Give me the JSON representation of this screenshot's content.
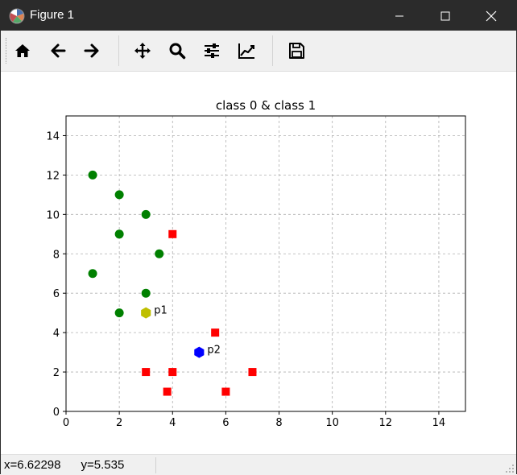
{
  "window": {
    "title": "Figure 1"
  },
  "toolbar": {
    "buttons": [
      {
        "name": "home",
        "icon": "home-icon"
      },
      {
        "name": "back",
        "icon": "arrow-left-icon"
      },
      {
        "name": "forward",
        "icon": "arrow-right-icon"
      },
      {
        "name": "pan",
        "icon": "move-icon"
      },
      {
        "name": "zoom",
        "icon": "magnifier-icon"
      },
      {
        "name": "configure-subplots",
        "icon": "sliders-icon"
      },
      {
        "name": "edit-axis",
        "icon": "line-chart-icon"
      },
      {
        "name": "save",
        "icon": "floppy-disk-icon"
      }
    ]
  },
  "status": {
    "coords": "x=6.62298      y=5.535"
  },
  "chart_data": {
    "type": "scatter",
    "title": "class 0 & class 1",
    "xlabel": "",
    "ylabel": "",
    "xlim": [
      0,
      15
    ],
    "ylim": [
      0,
      15
    ],
    "xticks": [
      0,
      2,
      4,
      6,
      8,
      10,
      12,
      14
    ],
    "yticks": [
      0,
      2,
      4,
      6,
      8,
      10,
      12,
      14
    ],
    "grid": true,
    "series": [
      {
        "marker": "circle",
        "color": "#008000",
        "points": [
          [
            1,
            12
          ],
          [
            2,
            11
          ],
          [
            3,
            10
          ],
          [
            2,
            9
          ],
          [
            3.5,
            8
          ],
          [
            1,
            7
          ],
          [
            3,
            6
          ],
          [
            2,
            5
          ]
        ]
      },
      {
        "marker": "square",
        "color": "#ff0000",
        "points": [
          [
            4,
            9
          ],
          [
            5.6,
            4
          ],
          [
            3,
            2
          ],
          [
            4,
            2
          ],
          [
            7,
            2
          ],
          [
            3.8,
            1
          ],
          [
            6,
            1
          ]
        ]
      }
    ],
    "highlights": [
      {
        "label": "p1",
        "x": 3,
        "y": 5,
        "marker": "hexagon",
        "color": "#bfbf00"
      },
      {
        "label": "p2",
        "x": 5,
        "y": 3,
        "marker": "hexagon",
        "color": "#0000ff"
      }
    ]
  }
}
